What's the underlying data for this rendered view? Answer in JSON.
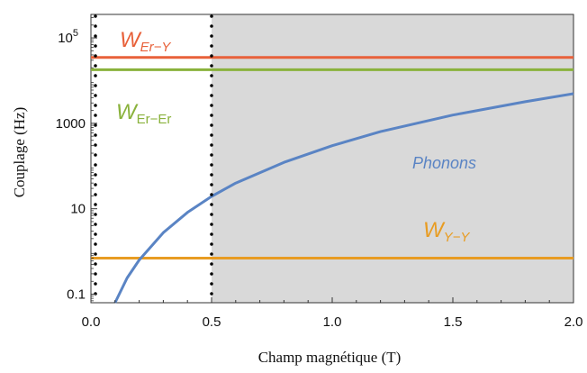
{
  "chart_data": {
    "type": "line",
    "title": "",
    "xlabel": "Champ magnétique (T)",
    "ylabel": "Couplage (Hz)",
    "xlim": [
      0,
      2
    ],
    "ylim_log10": [
      -1.2,
      5.55
    ],
    "y_scale": "log",
    "grid": false,
    "x_ticks": [
      {
        "value": 0.0,
        "label": "0.0"
      },
      {
        "value": 0.5,
        "label": "0.5"
      },
      {
        "value": 1.0,
        "label": "1.0"
      },
      {
        "value": 1.5,
        "label": "1.5"
      },
      {
        "value": 2.0,
        "label": "2.0"
      }
    ],
    "y_ticks": [
      {
        "log10": -1,
        "label": "0.1",
        "superscript": ""
      },
      {
        "log10": 1,
        "label": "10",
        "superscript": ""
      },
      {
        "log10": 3,
        "label": "1000",
        "superscript": ""
      },
      {
        "log10": 5,
        "label": "10",
        "superscript": "5"
      }
    ],
    "shaded_region": {
      "x_from": 0.5,
      "x_to": 2.0,
      "color": "#d9d9d9"
    },
    "dotted_vlines": [
      0.0,
      0.5
    ],
    "series": [
      {
        "name": "W_Er-Y",
        "label_main": "W",
        "label_sub": "Er−Y",
        "kind": "hline",
        "value": 35000,
        "color": "#e8613a"
      },
      {
        "name": "W_Er-Er",
        "label_main": "W",
        "label_sub": "Er−Er",
        "kind": "hline",
        "value": 18000,
        "color": "#8ab23c"
      },
      {
        "name": "W_Y-Y",
        "label_main": "W",
        "label_sub": "Y−Y",
        "kind": "hline",
        "value": 0.7,
        "color": "#e89c22"
      },
      {
        "name": "Phonons",
        "label_main": "Phonons",
        "label_sub": "",
        "kind": "curve",
        "color": "#5a84c4",
        "x": [
          0.1,
          0.15,
          0.2,
          0.3,
          0.4,
          0.5,
          0.6,
          0.8,
          1.0,
          1.2,
          1.5,
          1.8,
          2.0
        ],
        "y": [
          0.063,
          0.24,
          0.63,
          2.76,
          8.2,
          19.5,
          40,
          122,
          300,
          640,
          1560,
          3200,
          4950
        ]
      }
    ]
  }
}
